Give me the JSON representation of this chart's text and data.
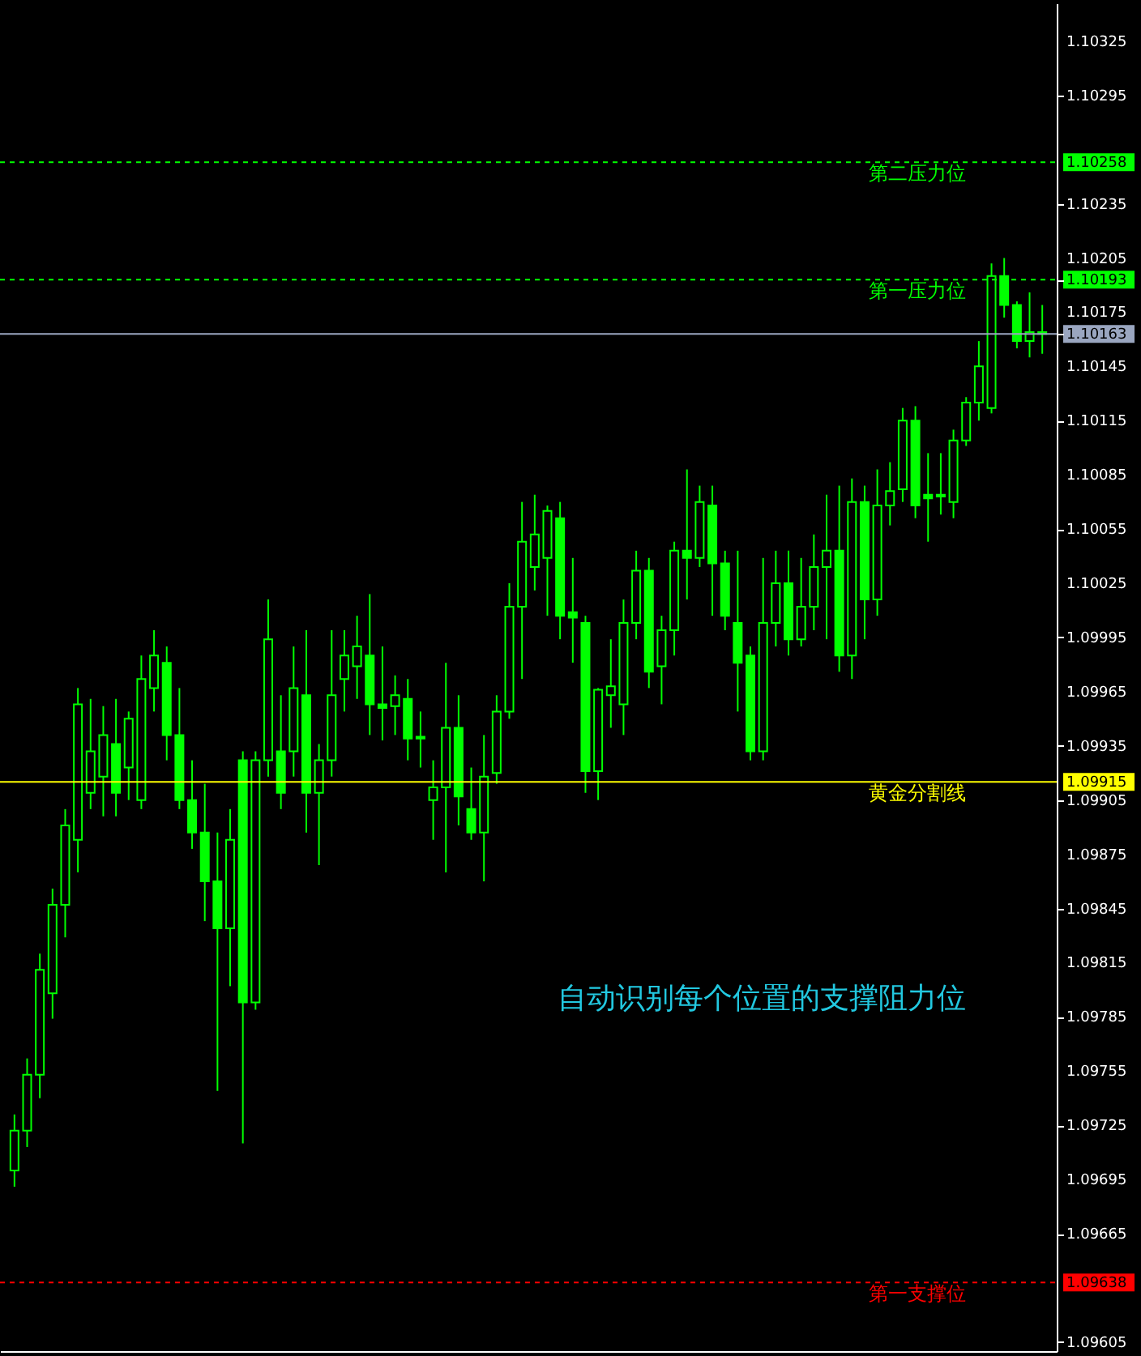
{
  "chart_data": {
    "type": "candlestick",
    "color": "#00ff00",
    "categories": [
      null,
      null,
      null,
      null,
      null,
      null,
      null,
      null,
      null,
      null,
      null,
      null,
      null,
      null,
      null,
      null,
      null,
      null,
      null,
      null,
      null,
      null,
      null,
      null,
      null,
      null,
      null,
      null,
      null,
      null,
      null,
      null,
      null,
      null,
      null,
      null,
      null,
      null,
      null,
      null,
      null,
      null,
      null,
      null,
      null,
      null,
      null,
      null,
      null,
      null,
      null,
      null,
      null,
      null,
      null,
      null,
      null,
      null,
      null,
      null,
      null,
      null,
      null,
      null,
      null,
      null,
      null,
      null,
      null,
      null,
      null,
      null,
      null,
      null,
      null,
      null,
      null,
      null,
      null,
      null,
      null,
      null
    ],
    "ohlc": [
      [
        1.097,
        1.09731,
        1.09691,
        1.09722
      ],
      [
        1.09722,
        1.09762,
        1.09713,
        1.09753
      ],
      [
        1.09753,
        1.0982,
        1.0974,
        1.09811
      ],
      [
        1.09798,
        1.09856,
        1.09784,
        1.09847
      ],
      [
        1.09847,
        1.099,
        1.09829,
        1.09891
      ],
      [
        1.09883,
        1.09967,
        1.09865,
        1.09958
      ],
      [
        1.09909,
        1.09961,
        1.099,
        1.09932
      ],
      [
        1.09918,
        1.09957,
        1.09896,
        1.09941
      ],
      [
        1.09936,
        1.09961,
        1.09896,
        1.09909
      ],
      [
        1.09923,
        1.09954,
        1.09905,
        1.0995
      ],
      [
        1.09905,
        1.09985,
        1.099,
        1.09972
      ],
      [
        1.09967,
        1.09999,
        1.09954,
        1.09985
      ],
      [
        1.09981,
        1.0999,
        1.09927,
        1.09941
      ],
      [
        1.09941,
        1.09967,
        1.099,
        1.09905
      ],
      [
        1.09905,
        1.09927,
        1.09878,
        1.09887
      ],
      [
        1.09887,
        1.09914,
        1.09838,
        1.0986
      ],
      [
        1.0986,
        1.09887,
        1.09744,
        1.09834
      ],
      [
        1.09834,
        1.099,
        1.09802,
        1.09883
      ],
      [
        1.09927,
        1.09932,
        1.09715,
        1.09793
      ],
      [
        1.09793,
        1.09932,
        1.09789,
        1.09927
      ],
      [
        1.09927,
        1.10016,
        1.09918,
        1.09994
      ],
      [
        1.09932,
        1.09963,
        1.099,
        1.09909
      ],
      [
        1.09932,
        1.0999,
        1.09918,
        1.09967
      ],
      [
        1.09963,
        1.09999,
        1.09887,
        1.09909
      ],
      [
        1.09909,
        1.09936,
        1.09869,
        1.09927
      ],
      [
        1.09927,
        1.09999,
        1.09918,
        1.09963
      ],
      [
        1.09972,
        1.09999,
        1.09954,
        1.09985
      ],
      [
        1.09979,
        1.10007,
        1.09961,
        1.0999
      ],
      [
        1.09985,
        1.10019,
        1.09941,
        1.09958
      ],
      [
        1.09958,
        1.0999,
        1.09938,
        1.09956
      ],
      [
        1.09957,
        1.09974,
        1.09941,
        1.09963
      ],
      [
        1.09961,
        1.09972,
        1.09927,
        1.09939
      ],
      [
        1.0994,
        1.09954,
        1.09923,
        1.09939
      ],
      [
        1.09905,
        1.09927,
        1.09883,
        1.09912
      ],
      [
        1.09912,
        1.09981,
        1.09865,
        1.09945
      ],
      [
        1.09945,
        1.09963,
        1.09891,
        1.09907
      ],
      [
        1.099,
        1.09923,
        1.09883,
        1.09887
      ],
      [
        1.09887,
        1.09941,
        1.0986,
        1.09918
      ],
      [
        1.0992,
        1.09963,
        1.09914,
        1.09954
      ],
      [
        1.09954,
        1.10025,
        1.0995,
        1.10012
      ],
      [
        1.10012,
        1.1007,
        1.09972,
        1.10048
      ],
      [
        1.10034,
        1.10074,
        1.10021,
        1.10052
      ],
      [
        1.10039,
        1.10068,
        1.10007,
        1.10065
      ],
      [
        1.10061,
        1.1007,
        1.09994,
        1.10007
      ],
      [
        1.10009,
        1.10039,
        1.09981,
        1.10006
      ],
      [
        1.10003,
        1.10007,
        1.09909,
        1.09921
      ],
      [
        1.09921,
        1.09967,
        1.09905,
        1.09966
      ],
      [
        1.09963,
        1.09994,
        1.09945,
        1.09968
      ],
      [
        1.09958,
        1.10016,
        1.09941,
        1.10003
      ],
      [
        1.10003,
        1.10043,
        1.09994,
        1.10032
      ],
      [
        1.10032,
        1.10039,
        1.09967,
        1.09976
      ],
      [
        1.09979,
        1.10007,
        1.09958,
        1.09999
      ],
      [
        1.09999,
        1.10048,
        1.09985,
        1.10043
      ],
      [
        1.10043,
        1.10088,
        1.10016,
        1.10039
      ],
      [
        1.10039,
        1.10079,
        1.10034,
        1.1007
      ],
      [
        1.10068,
        1.10079,
        1.10007,
        1.10036
      ],
      [
        1.10036,
        1.10043,
        1.09999,
        1.10007
      ],
      [
        1.10003,
        1.10043,
        1.09954,
        1.09981
      ],
      [
        1.09985,
        1.0999,
        1.09927,
        1.09932
      ],
      [
        1.09932,
        1.10039,
        1.09927,
        1.10003
      ],
      [
        1.10003,
        1.10043,
        1.0999,
        1.10025
      ],
      [
        1.10025,
        1.10043,
        1.09985,
        1.09994
      ],
      [
        1.09994,
        1.10039,
        1.0999,
        1.10012
      ],
      [
        1.10012,
        1.10052,
        1.09999,
        1.10034
      ],
      [
        1.10034,
        1.10074,
        1.09994,
        1.10043
      ],
      [
        1.10043,
        1.10079,
        1.09976,
        1.09985
      ],
      [
        1.09985,
        1.10083,
        1.09972,
        1.1007
      ],
      [
        1.1007,
        1.10079,
        1.09994,
        1.10016
      ],
      [
        1.10016,
        1.10088,
        1.10007,
        1.10068
      ],
      [
        1.10068,
        1.10092,
        1.10057,
        1.10076
      ],
      [
        1.10077,
        1.10122,
        1.1007,
        1.10115
      ],
      [
        1.10115,
        1.10123,
        1.10061,
        1.10068
      ],
      [
        1.10074,
        1.10097,
        1.10048,
        1.10072
      ],
      [
        1.10074,
        1.10097,
        1.10063,
        1.10073
      ],
      [
        1.1007,
        1.1011,
        1.10061,
        1.10104
      ],
      [
        1.10104,
        1.10128,
        1.10101,
        1.10125
      ],
      [
        1.10125,
        1.10159,
        1.10115,
        1.10145
      ],
      [
        1.10122,
        1.10202,
        1.10119,
        1.10195
      ],
      [
        1.10195,
        1.10205,
        1.10172,
        1.10179
      ],
      [
        1.10179,
        1.10181,
        1.10155,
        1.10159
      ],
      [
        1.10159,
        1.10186,
        1.1015,
        1.10164
      ],
      [
        1.10164,
        1.10179,
        1.10152,
        1.10163
      ]
    ],
    "ylim": [
      1.096,
      1.10346
    ],
    "yticks": [
      1.09605,
      1.09638,
      1.09665,
      1.09695,
      1.09725,
      1.09755,
      1.09785,
      1.09815,
      1.09845,
      1.09875,
      1.09905,
      1.09915,
      1.09935,
      1.09965,
      1.09995,
      1.10025,
      1.10055,
      1.10085,
      1.10115,
      1.10145,
      1.10163,
      1.10175,
      1.10193,
      1.10205,
      1.10235,
      1.10258,
      1.10295,
      1.10325
    ],
    "tick_labels": "y",
    "grid": false,
    "ref_lines": [
      {
        "axis": "y",
        "value": 1.10258,
        "label": "第二压力位",
        "color": "#00ff00",
        "line_style": "dashed"
      },
      {
        "axis": "y",
        "value": 1.10193,
        "label": "第一压力位",
        "color": "#00ff00",
        "line_style": "dashed"
      },
      {
        "axis": "y",
        "value": 1.10163,
        "color": "#9aa6c0",
        "line_style": "solid"
      },
      {
        "axis": "y",
        "value": 1.09915,
        "label": "黄金分割线",
        "color": "#ffff00",
        "line_style": "solid"
      },
      {
        "axis": "y",
        "value": 1.09638,
        "label": "第一支撑位",
        "color": "#ff0000",
        "line_style": "dashed"
      }
    ],
    "annotations": [
      "自动识别每个位置的支撑阻力位"
    ]
  }
}
